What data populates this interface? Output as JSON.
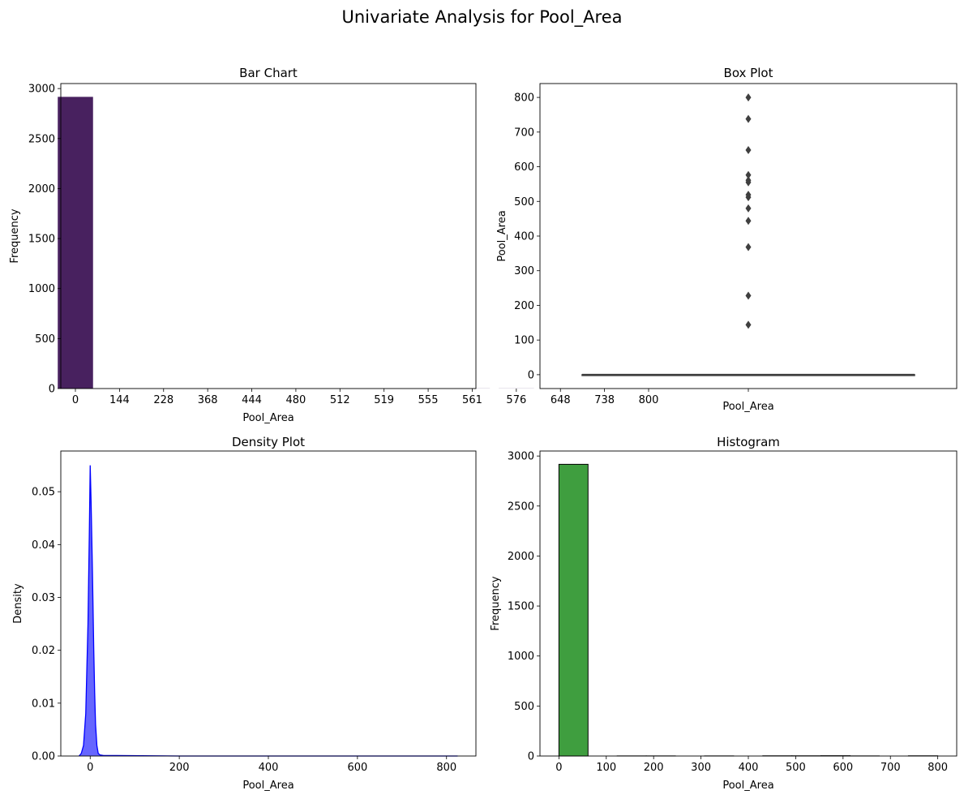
{
  "suptitle": "Univariate Analysis for Pool_Area",
  "chart_data": [
    {
      "type": "bar",
      "title": "Bar Chart",
      "xlabel": "Pool_Area",
      "ylabel": "Frequency",
      "categories": [
        "0",
        "144",
        "228",
        "368",
        "444",
        "480",
        "512",
        "519",
        "555",
        "561",
        "576",
        "648",
        "738",
        "800"
      ],
      "values": [
        2917,
        1,
        1,
        1,
        1,
        1,
        1,
        1,
        1,
        1,
        1,
        1,
        1,
        1
      ],
      "ylim": [
        0,
        3050
      ],
      "yticks": [
        0,
        500,
        1000,
        1500,
        2000,
        2500,
        3000
      ],
      "color": "#48215f"
    },
    {
      "type": "box",
      "title": "Box Plot",
      "xlabel": "Pool_Area",
      "ylabel": "Pool_Area",
      "median": 0,
      "q1": 0,
      "q3": 0,
      "whisker_low": 0,
      "whisker_high": 0,
      "outliers": [
        144,
        228,
        368,
        444,
        480,
        512,
        519,
        555,
        561,
        576,
        648,
        738,
        800
      ],
      "ylim": [
        -40,
        840
      ],
      "yticks": [
        0,
        100,
        200,
        300,
        400,
        500,
        600,
        700,
        800
      ],
      "color": "#3f3f3f"
    },
    {
      "type": "area",
      "title": "Density Plot",
      "xlabel": "Pool_Area",
      "ylabel": "Density",
      "x": [
        -25,
        -20,
        -15,
        -10,
        -5,
        -2,
        0,
        2,
        5,
        8,
        10,
        12,
        15,
        18,
        22,
        30,
        60,
        200,
        400,
        600,
        825
      ],
      "y": [
        0,
        0.0005,
        0.002,
        0.008,
        0.025,
        0.042,
        0.055,
        0.048,
        0.035,
        0.02,
        0.012,
        0.006,
        0.002,
        0.0005,
        0.0002,
        0.0001,
        0.0001,
        0,
        0,
        0,
        0
      ],
      "xlim": [
        -66,
        866
      ],
      "ylim": [
        0,
        0.0577
      ],
      "xticks": [
        0,
        200,
        400,
        600,
        800
      ],
      "yticks": [
        0.0,
        0.01,
        0.02,
        0.03,
        0.04,
        0.05
      ],
      "ytick_labels": [
        "0.00",
        "0.01",
        "0.02",
        "0.03",
        "0.04",
        "0.05"
      ],
      "color": "#0000ff"
    },
    {
      "type": "histogram",
      "title": "Histogram",
      "xlabel": "Pool_Area",
      "ylabel": "Frequency",
      "bins": [
        {
          "x0": 0,
          "x1": 61.5,
          "count": 2917
        },
        {
          "x0": 123,
          "x1": 184.5,
          "count": 1
        },
        {
          "x0": 184.5,
          "x1": 246,
          "count": 1
        },
        {
          "x0": 307.5,
          "x1": 369,
          "count": 1
        },
        {
          "x0": 430.5,
          "x1": 492,
          "count": 2
        },
        {
          "x0": 492,
          "x1": 553.5,
          "count": 2
        },
        {
          "x0": 553.5,
          "x1": 615,
          "count": 3
        },
        {
          "x0": 615,
          "x1": 676.5,
          "count": 1
        },
        {
          "x0": 676.5,
          "x1": 738,
          "count": 0
        },
        {
          "x0": 738,
          "x1": 800,
          "count": 2
        }
      ],
      "xlim": [
        -40,
        840
      ],
      "ylim": [
        0,
        3050
      ],
      "xticks": [
        0,
        100,
        200,
        300,
        400,
        500,
        600,
        700,
        800
      ],
      "yticks": [
        0,
        500,
        1000,
        1500,
        2000,
        2500,
        3000
      ],
      "color": "#3f9e3f"
    }
  ]
}
